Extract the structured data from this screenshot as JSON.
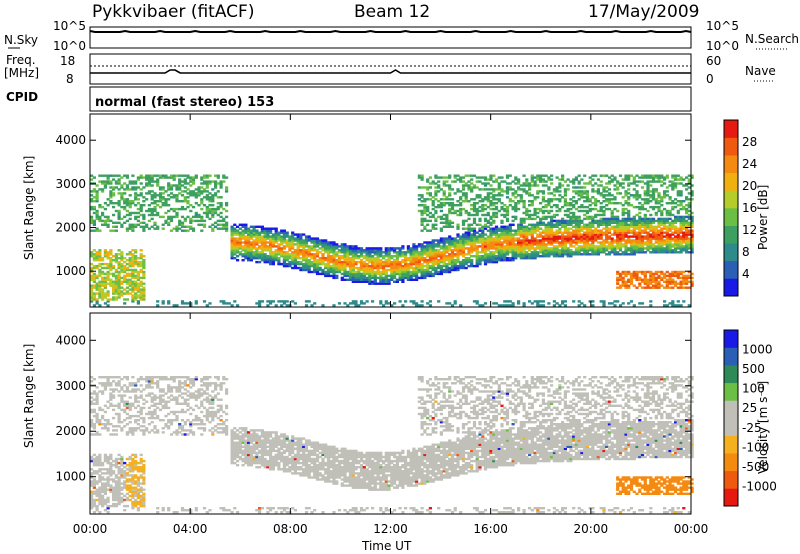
{
  "header": {
    "station": "Pykkvibaer (fitACF)",
    "beam": "Beam 12",
    "date": "17/May/2009"
  },
  "top_panels": {
    "nsky_label": "N.Sky",
    "nsky_ticks": [
      "10^5",
      "10^0"
    ],
    "nsearch_label": "N.Search",
    "nsearch_ticks": [
      "10^5",
      "10^0"
    ],
    "freq_label_1": "Freq.",
    "freq_label_2": "[MHz]",
    "freq_ticks": [
      "18",
      "8"
    ],
    "nave_label": "Nave",
    "nave_ticks": [
      "60",
      "0"
    ],
    "cpid_label": "CPID",
    "cpid_text": "normal (fast stereo) 153"
  },
  "colors": {
    "power_scale": [
      "#1a1ae6",
      "#2a5fb5",
      "#2e8b8b",
      "#3da060",
      "#6cbf45",
      "#b5cc2a",
      "#f0b010",
      "#f58a10",
      "#f05a10",
      "#e61a10"
    ],
    "velocity_scale": [
      "#1a1ae6",
      "#2a5fb5",
      "#2e8b57",
      "#6cbf45",
      "#c0c0b8",
      "#c0c0b8",
      "#f5b020",
      "#f58a10",
      "#f05a10",
      "#e61a10"
    ],
    "ground_scatter": "#c0c0b8"
  },
  "chart_data": [
    {
      "type": "heatmap",
      "title": "Power",
      "ylabel": "Slant Range [km]",
      "ylim": [
        180,
        4600
      ],
      "yticks": [
        "1000",
        "2000",
        "3000",
        "4000"
      ],
      "colorbar": {
        "label": "Power [dB]",
        "range": [
          0,
          32
        ],
        "tick_labels": [
          "4",
          "8",
          "12",
          "16",
          "20",
          "24",
          "28"
        ]
      }
    },
    {
      "type": "heatmap",
      "title": "Velocity",
      "ylabel": "Slant Range [km]",
      "xlabel": "Time UT",
      "ylim": [
        180,
        4600
      ],
      "yticks": [
        "1000",
        "2000",
        "3000",
        "4000"
      ],
      "xticks": [
        "00:00",
        "04:00",
        "08:00",
        "12:00",
        "16:00",
        "20:00",
        "00:00"
      ],
      "xlim_hours": [
        0,
        24
      ],
      "colorbar": {
        "label": "Velocity [m s⁻¹]",
        "tick_labels": [
          "1000",
          "500",
          "100",
          "25",
          "-25",
          "-100",
          "-500",
          "-1000"
        ]
      }
    }
  ]
}
